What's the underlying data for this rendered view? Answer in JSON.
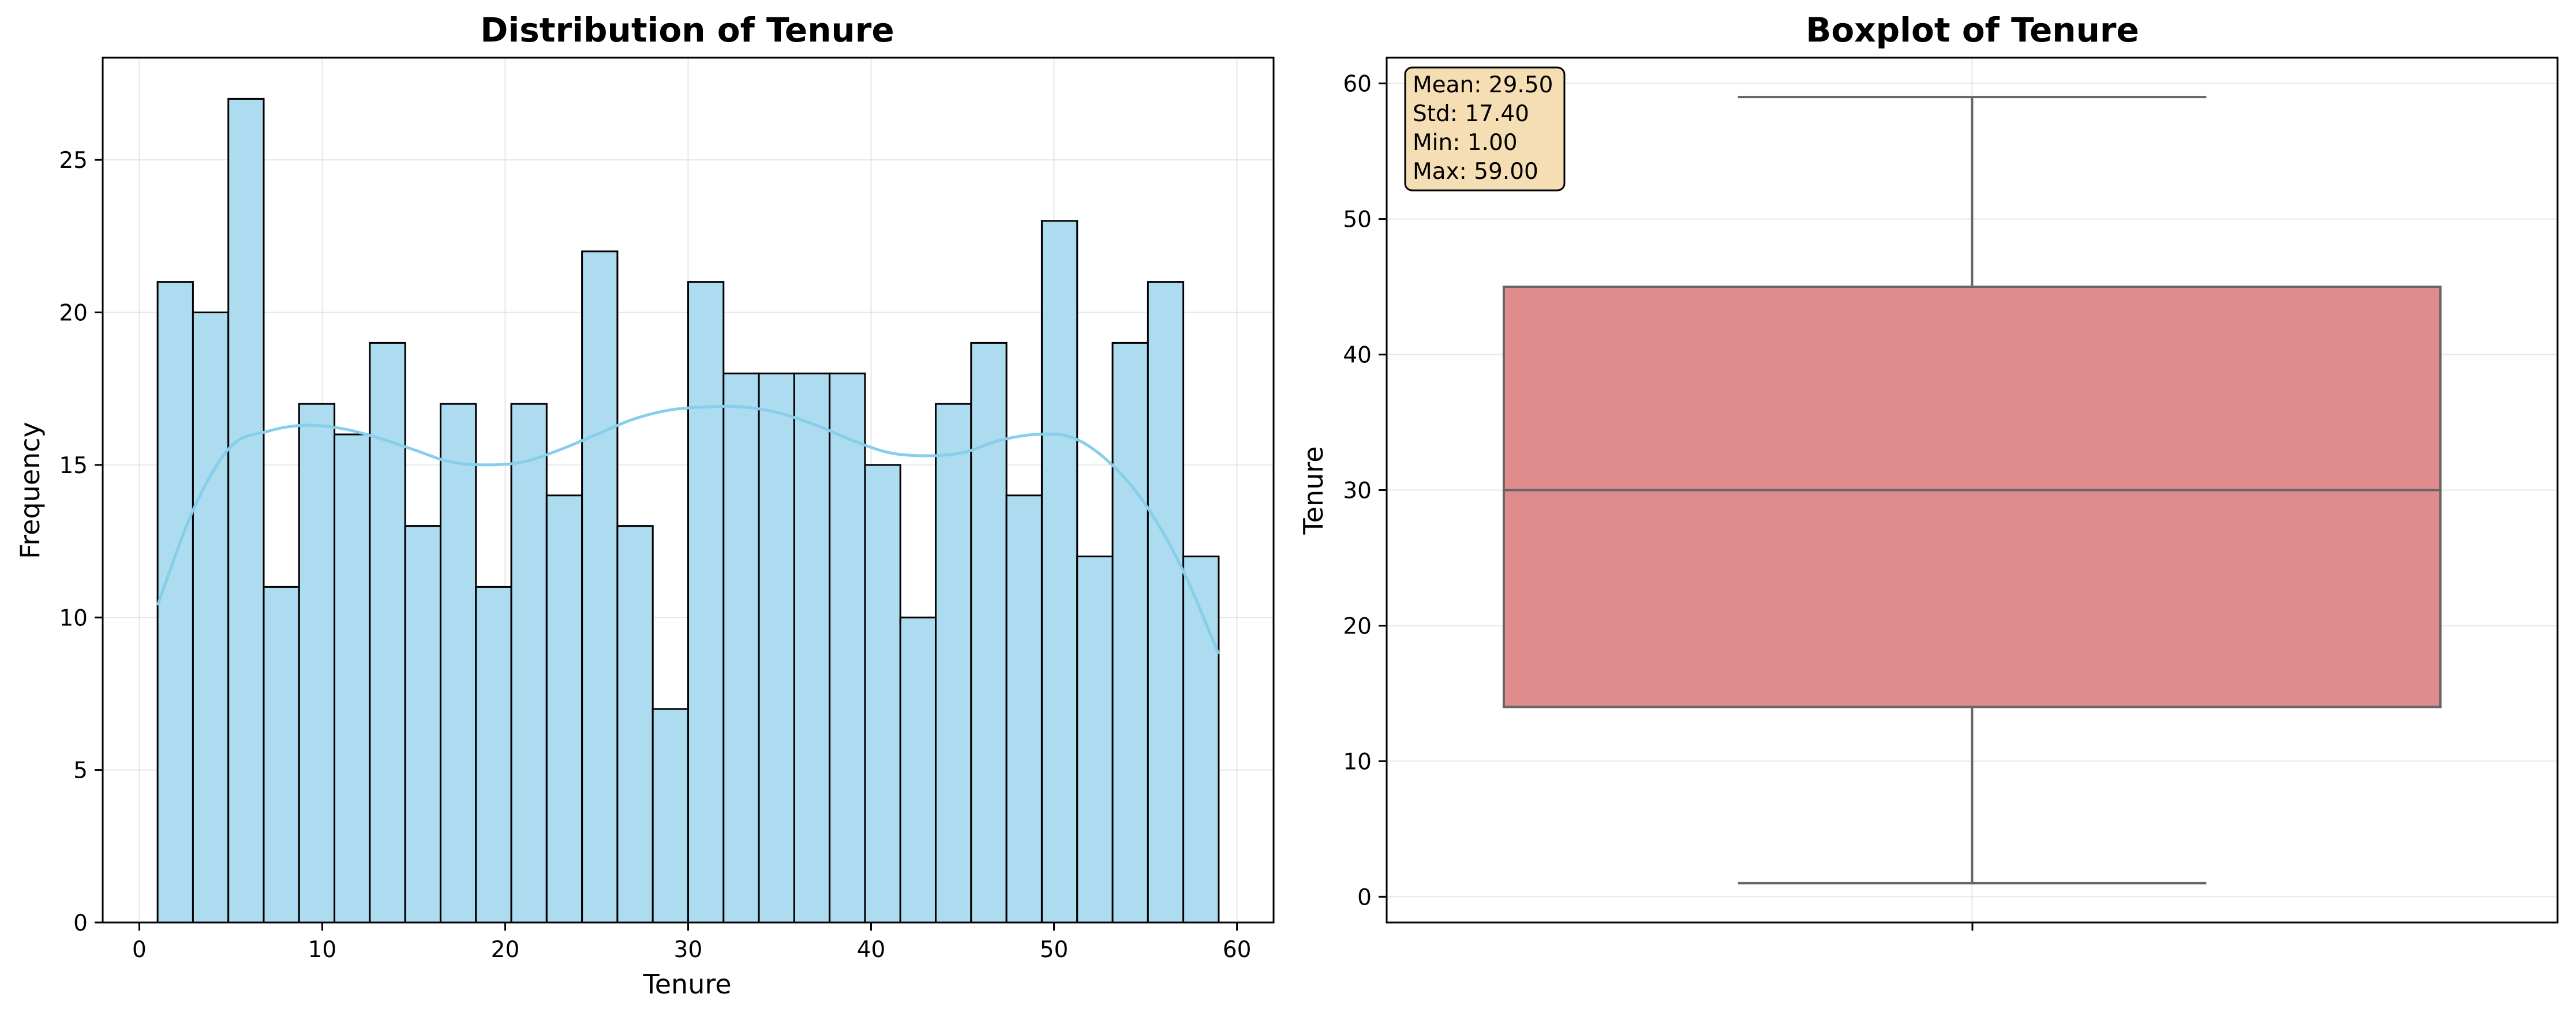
{
  "chart_data": [
    {
      "type": "bar",
      "title": "Distribution of Tenure",
      "xlabel": "Tenure",
      "ylabel": "Frequency",
      "xlim": [
        -2,
        62
      ],
      "ylim": [
        0,
        28.35
      ],
      "xticks": [
        0,
        10,
        20,
        30,
        40,
        50,
        60
      ],
      "yticks": [
        0,
        5,
        10,
        15,
        20,
        25
      ],
      "grid": true,
      "bin_edges": [
        1,
        2.9333,
        4.8667,
        6.8,
        8.7333,
        10.6667,
        12.6,
        14.5333,
        16.4667,
        18.4,
        20.3333,
        22.2667,
        24.2,
        26.1333,
        28.0667,
        30,
        31.9333,
        33.8667,
        35.8,
        37.7333,
        39.6667,
        41.6,
        43.5333,
        45.4667,
        47.4,
        49.3333,
        51.2667,
        53.2,
        55.1333,
        57.0667,
        59
      ],
      "values": [
        21,
        20,
        27,
        11,
        17,
        16,
        19,
        13,
        17,
        11,
        17,
        14,
        22,
        13,
        7,
        21,
        18,
        18,
        18,
        18,
        15,
        10,
        17,
        19,
        14,
        23,
        12,
        19,
        21,
        12
      ],
      "bar_color": "#ADDBEF",
      "edge_color": "#000000",
      "kde": {
        "color": "#87CEEB",
        "x": [
          1,
          3,
          5,
          7,
          9,
          11,
          13,
          15,
          17,
          19,
          21,
          23,
          25,
          27,
          29,
          31,
          33,
          35,
          37,
          39,
          41,
          43,
          45,
          47,
          49,
          51,
          53,
          55,
          57,
          59
        ],
        "y": [
          10.4,
          13.6,
          15.6,
          16.1,
          16.3,
          16.2,
          15.9,
          15.5,
          15.1,
          15.0,
          15.1,
          15.5,
          16.0,
          16.5,
          16.8,
          16.9,
          16.9,
          16.7,
          16.3,
          15.8,
          15.4,
          15.3,
          15.4,
          15.8,
          16.0,
          15.9,
          15.1,
          13.7,
          11.6,
          8.8
        ]
      }
    },
    {
      "type": "boxplot",
      "title": "Boxplot of Tenure",
      "ylabel": "Tenure",
      "ylim": [
        -1.9,
        61.9
      ],
      "yticks": [
        0,
        10,
        20,
        30,
        40,
        50,
        60
      ],
      "grid": true,
      "whisker_low": 1,
      "q1": 14,
      "median": 30,
      "q3": 45,
      "whisker_high": 59,
      "box_color": "#E08C8E",
      "line_color": "#666666",
      "stats_box": {
        "lines": [
          "Mean: 29.50",
          "Std: 17.40",
          "Min: 1.00",
          "Max: 59.00"
        ],
        "background": "#F5DEB3",
        "placement": "top-left"
      }
    }
  ]
}
